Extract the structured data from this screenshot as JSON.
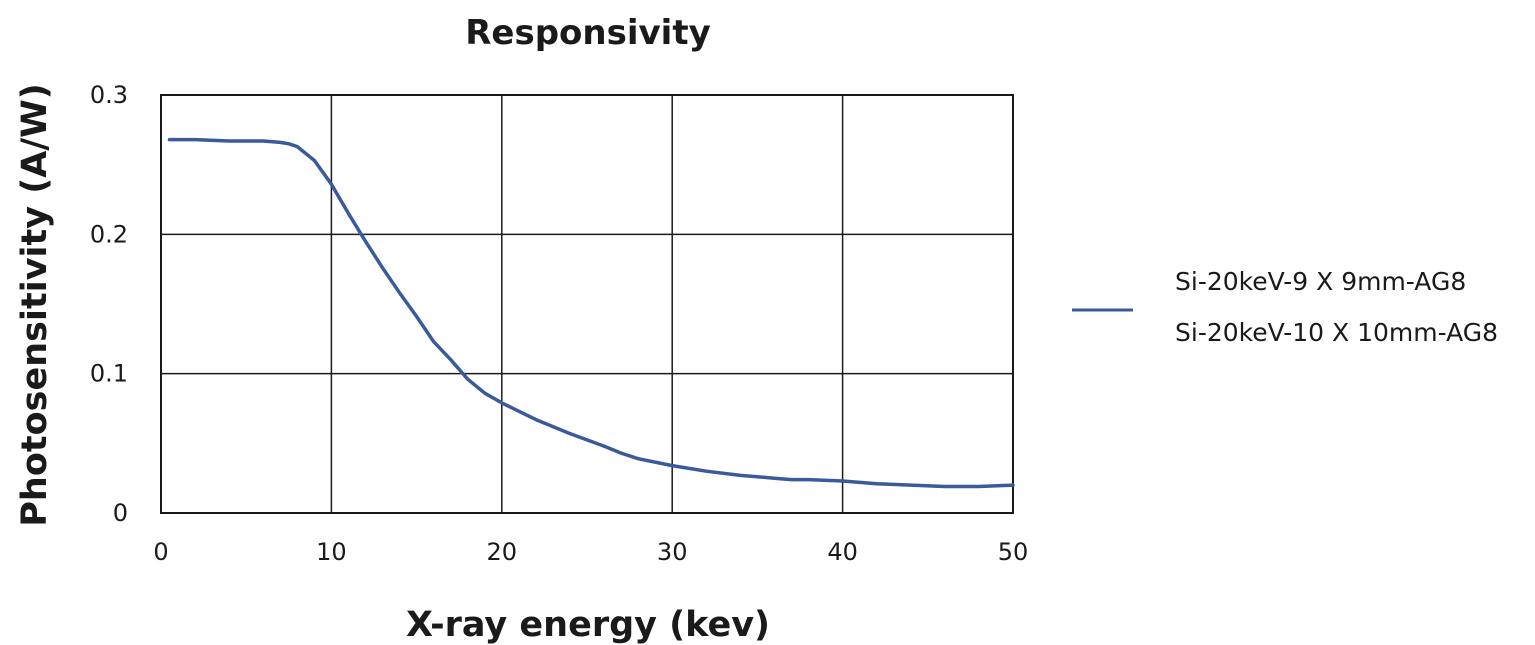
{
  "chart_data": {
    "type": "line",
    "title": "Responsivity",
    "xlabel": "X-ray energy (kev)",
    "ylabel": "Photosensitivity (A/W)",
    "xlim": [
      0,
      50
    ],
    "ylim": [
      0,
      0.3
    ],
    "x_ticks": [
      "0",
      "10",
      "20",
      "30",
      "40",
      "50"
    ],
    "y_ticks": [
      "0",
      "0.1",
      "0.2",
      "0.3"
    ],
    "x_tick_values": [
      0,
      10,
      20,
      30,
      40,
      50
    ],
    "y_tick_values": [
      0,
      0.1,
      0.2,
      0.3
    ],
    "grid": true,
    "legend_position": "right",
    "legend_entries": [
      "Si-20keV-9 X 9mm-AG8",
      "Si-20keV-10 X 10mm-AG8"
    ],
    "series": [
      {
        "color": "#3a5a9c",
        "x": [
          0.5,
          2,
          4,
          6,
          7,
          7.5,
          8,
          9,
          10,
          11,
          12,
          13,
          14,
          15,
          16,
          17,
          18,
          19,
          20,
          22,
          24,
          26,
          27,
          28,
          30,
          32,
          34,
          36,
          37,
          38,
          40,
          42,
          44,
          46,
          47,
          48,
          50
        ],
        "y": [
          0.268,
          0.268,
          0.267,
          0.267,
          0.266,
          0.265,
          0.263,
          0.253,
          0.236,
          0.215,
          0.195,
          0.176,
          0.158,
          0.141,
          0.123,
          0.11,
          0.096,
          0.086,
          0.079,
          0.067,
          0.057,
          0.048,
          0.043,
          0.039,
          0.034,
          0.03,
          0.027,
          0.025,
          0.024,
          0.024,
          0.023,
          0.021,
          0.02,
          0.019,
          0.019,
          0.019,
          0.02
        ]
      }
    ]
  }
}
